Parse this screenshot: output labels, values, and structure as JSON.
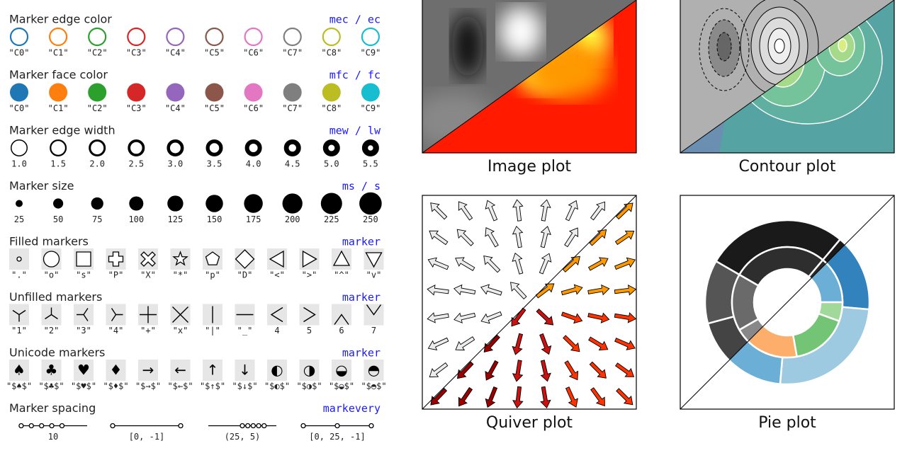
{
  "sections": [
    {
      "kind": "edge-color",
      "title": "Marker edge color",
      "tag": "mec / ec",
      "items": [
        {
          "label": "\"C0\"",
          "color": "#1f77b4"
        },
        {
          "label": "\"C1\"",
          "color": "#ff7f0e"
        },
        {
          "label": "\"C2\"",
          "color": "#2ca02c"
        },
        {
          "label": "\"C3\"",
          "color": "#d62728"
        },
        {
          "label": "\"C4\"",
          "color": "#9467bd"
        },
        {
          "label": "\"C5\"",
          "color": "#8c564b"
        },
        {
          "label": "\"C6\"",
          "color": "#e377c2"
        },
        {
          "label": "\"C7\"",
          "color": "#7f7f7f"
        },
        {
          "label": "\"C8\"",
          "color": "#bcbd22"
        },
        {
          "label": "\"C9\"",
          "color": "#17becf"
        }
      ]
    },
    {
      "kind": "face-color",
      "title": "Marker face color",
      "tag": "mfc / fc",
      "items": [
        {
          "label": "\"C0\"",
          "color": "#1f77b4"
        },
        {
          "label": "\"C1\"",
          "color": "#ff7f0e"
        },
        {
          "label": "\"C2\"",
          "color": "#2ca02c"
        },
        {
          "label": "\"C3\"",
          "color": "#d62728"
        },
        {
          "label": "\"C4\"",
          "color": "#9467bd"
        },
        {
          "label": "\"C5\"",
          "color": "#8c564b"
        },
        {
          "label": "\"C6\"",
          "color": "#e377c2"
        },
        {
          "label": "\"C7\"",
          "color": "#7f7f7f"
        },
        {
          "label": "\"C8\"",
          "color": "#bcbd22"
        },
        {
          "label": "\"C9\"",
          "color": "#17becf"
        }
      ]
    },
    {
      "kind": "edge-width",
      "title": "Marker edge width",
      "tag": "mew / lw",
      "items": [
        {
          "label": "1.0"
        },
        {
          "label": "1.5"
        },
        {
          "label": "2.0"
        },
        {
          "label": "2.5"
        },
        {
          "label": "3.0"
        },
        {
          "label": "3.5"
        },
        {
          "label": "4.0"
        },
        {
          "label": "4.5"
        },
        {
          "label": "5.0"
        },
        {
          "label": "5.5"
        }
      ]
    },
    {
      "kind": "size",
      "title": "Marker size",
      "tag": "ms / s",
      "items": [
        {
          "label": "25"
        },
        {
          "label": "50"
        },
        {
          "label": "75"
        },
        {
          "label": "100"
        },
        {
          "label": "125"
        },
        {
          "label": "150"
        },
        {
          "label": "175"
        },
        {
          "label": "200"
        },
        {
          "label": "225"
        },
        {
          "label": "250"
        }
      ]
    },
    {
      "kind": "filled",
      "title": "Filled markers",
      "tag": "marker",
      "items": [
        {
          "label": "\".\""
        },
        {
          "label": "\"o\""
        },
        {
          "label": "\"s\""
        },
        {
          "label": "\"P\""
        },
        {
          "label": "\"X\""
        },
        {
          "label": "\"*\""
        },
        {
          "label": "\"p\""
        },
        {
          "label": "\"D\""
        },
        {
          "label": "\"<\""
        },
        {
          "label": "\">\""
        },
        {
          "label": "\"^\""
        },
        {
          "label": "\"v\""
        }
      ]
    },
    {
      "kind": "unfilled",
      "title": "Unfilled markers",
      "tag": "marker",
      "items": [
        {
          "label": "\"1\""
        },
        {
          "label": "\"2\""
        },
        {
          "label": "\"3\""
        },
        {
          "label": "\"4\""
        },
        {
          "label": "\"+\""
        },
        {
          "label": "\"x\""
        },
        {
          "label": "\"|\""
        },
        {
          "label": "\"_\""
        },
        {
          "label": "4"
        },
        {
          "label": "5"
        },
        {
          "label": "6"
        },
        {
          "label": "7"
        }
      ]
    },
    {
      "kind": "unicode",
      "title": "Unicode markers",
      "tag": "marker",
      "items": [
        {
          "marker": "♠",
          "label": "\"$♠$\""
        },
        {
          "marker": "♣",
          "label": "\"$♣$\""
        },
        {
          "marker": "♥",
          "label": "\"$♥$\""
        },
        {
          "marker": "♦",
          "label": "\"$♦$\""
        },
        {
          "marker": "→",
          "label": "\"$→$\""
        },
        {
          "marker": "←",
          "label": "\"$←$\""
        },
        {
          "marker": "↑",
          "label": "\"$↑$\""
        },
        {
          "marker": "↓",
          "label": "\"$↓$\""
        },
        {
          "marker": "◐",
          "label": "\"$◐$\""
        },
        {
          "marker": "◑",
          "label": "\"$◑$\""
        },
        {
          "marker": "◒",
          "label": "\"$◒$\""
        },
        {
          "marker": "◓",
          "label": "\"$◓$\""
        }
      ]
    },
    {
      "kind": "spacing",
      "title": "Marker spacing",
      "tag": "markevery",
      "items": [
        {
          "label": "10"
        },
        {
          "label": "[0, -1]"
        },
        {
          "label": "(25, 5)"
        },
        {
          "label": "[0, 25, -1]"
        }
      ]
    }
  ],
  "plots": [
    {
      "title": "Image plot"
    },
    {
      "title": "Contour plot"
    },
    {
      "title": "Quiver plot"
    },
    {
      "title": "Pie plot"
    }
  ]
}
